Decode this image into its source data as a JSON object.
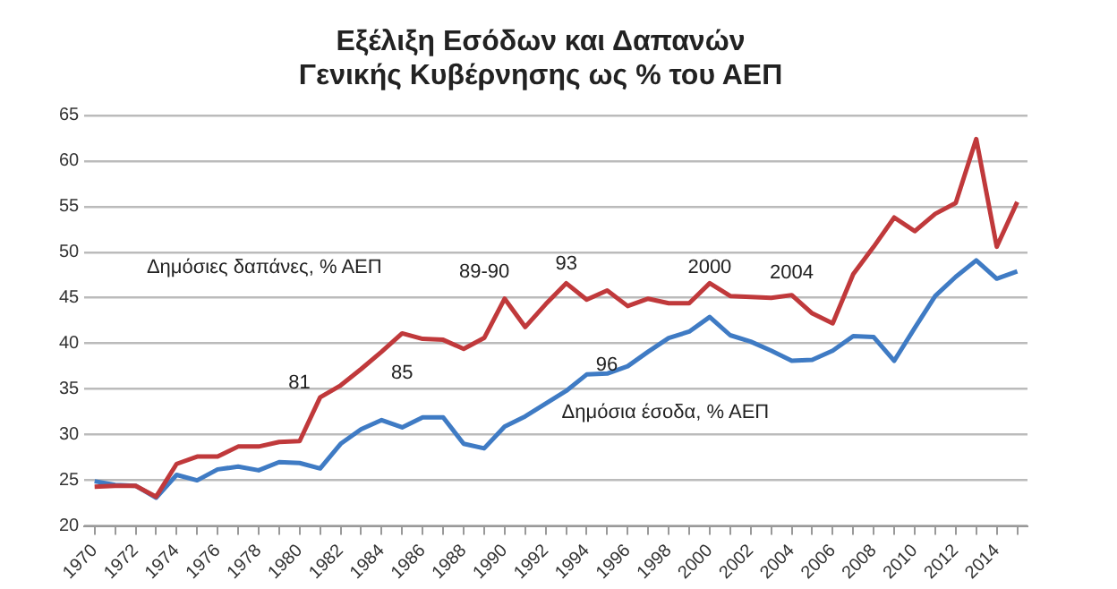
{
  "chart_data": {
    "type": "line",
    "title": "Εξέλιξη Εσόδων και Δαπανών\nΓενικής Κυβέρνησης ως % του ΑΕΠ",
    "x": [
      1970,
      1971,
      1972,
      1973,
      1974,
      1975,
      1976,
      1977,
      1978,
      1979,
      1980,
      1981,
      1982,
      1983,
      1984,
      1985,
      1986,
      1987,
      1988,
      1989,
      1990,
      1991,
      1992,
      1993,
      1994,
      1995,
      1996,
      1997,
      1998,
      1999,
      2000,
      2001,
      2002,
      2003,
      2004,
      2005,
      2006,
      2007,
      2008,
      2009,
      2010,
      2011,
      2012,
      2013,
      2014,
      2015
    ],
    "series": [
      {
        "name": "Δημόσιες δαπάνες, % ΑΕΠ",
        "color": "#c0393b",
        "values": [
          24.3,
          24.4,
          24.4,
          23.2,
          26.8,
          27.6,
          27.6,
          28.7,
          28.7,
          29.2,
          29.3,
          34.1,
          35.4,
          37.2,
          39.1,
          41.1,
          40.5,
          40.4,
          39.4,
          40.6,
          44.9,
          41.8,
          44.3,
          46.6,
          44.8,
          45.8,
          44.1,
          44.9,
          44.4,
          44.4,
          46.6,
          45.2,
          45.1,
          45.0,
          45.3,
          43.3,
          42.2,
          47.6,
          50.6,
          53.8,
          52.3,
          54.2,
          55.4,
          62.4,
          50.6,
          55.5
        ]
      },
      {
        "name": "Δημόσια έσοδα, % ΑΕΠ",
        "color": "#3f7bc4",
        "values": [
          24.9,
          24.5,
          24.4,
          23.1,
          25.6,
          25.0,
          26.2,
          26.5,
          26.1,
          27.0,
          26.9,
          26.3,
          29.0,
          30.6,
          31.6,
          30.8,
          31.9,
          31.9,
          29.0,
          28.5,
          30.9,
          32.0,
          33.4,
          34.8,
          36.6,
          36.7,
          37.5,
          39.1,
          40.6,
          41.3,
          42.9,
          40.9,
          40.2,
          39.2,
          38.1,
          38.2,
          39.2,
          40.8,
          40.7,
          38.1,
          41.7,
          45.2,
          47.3,
          49.1,
          47.1,
          47.9
        ]
      }
    ],
    "xlim": [
      1969.5,
      2015.5
    ],
    "xticks": [
      1970,
      {
        "value": 1971,
        "label": null
      },
      1972,
      {
        "value": 1973,
        "label": null
      },
      1974,
      {
        "value": 1975,
        "label": null
      },
      1976,
      {
        "value": 1977,
        "label": null
      },
      1978,
      {
        "value": 1979,
        "label": null
      },
      1980,
      {
        "value": 1981,
        "label": null
      },
      1982,
      {
        "value": 1983,
        "label": null
      },
      1984,
      {
        "value": 1985,
        "label": null
      },
      1986,
      {
        "value": 1987,
        "label": null
      },
      1988,
      {
        "value": 1989,
        "label": null
      },
      1990,
      {
        "value": 1991,
        "label": null
      },
      1992,
      {
        "value": 1993,
        "label": null
      },
      1994,
      {
        "value": 1995,
        "label": null
      },
      1996,
      {
        "value": 1997,
        "label": null
      },
      1998,
      {
        "value": 1999,
        "label": null
      },
      2000,
      {
        "value": 2001,
        "label": null
      },
      2002,
      {
        "value": 2003,
        "label": null
      },
      2004,
      {
        "value": 2005,
        "label": null
      },
      2006,
      {
        "value": 2007,
        "label": null
      },
      2008,
      {
        "value": 2009,
        "label": null
      },
      2010,
      {
        "value": 2011,
        "label": null
      },
      2012,
      {
        "value": 2013,
        "label": null
      },
      2014,
      {
        "value": 2015,
        "label": null
      }
    ],
    "ylim": [
      20,
      65
    ],
    "yticks": [
      20,
      25,
      30,
      35,
      40,
      45,
      50,
      55,
      60,
      65
    ],
    "grid": "y",
    "legend": false,
    "marker": "none",
    "line_style": "solid",
    "annotations": [
      "81",
      "85",
      "89-90",
      "93",
      "96",
      "2000",
      "2004"
    ]
  }
}
